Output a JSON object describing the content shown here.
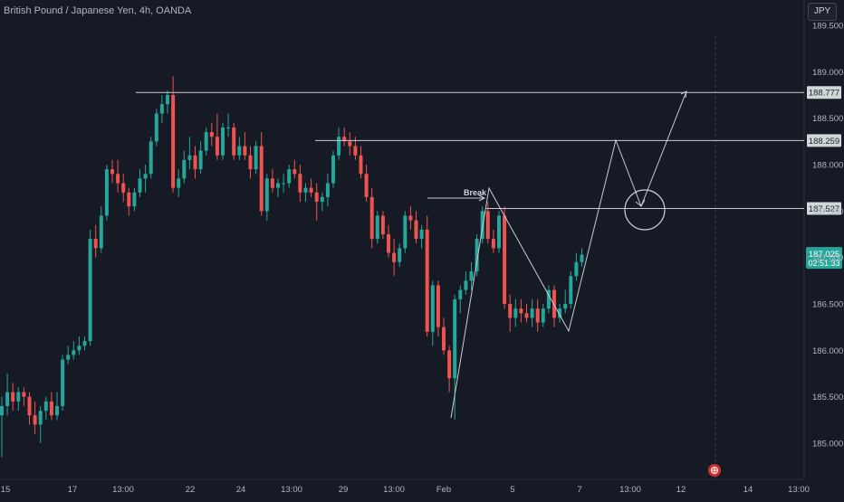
{
  "header": {
    "title": "British Pound / Japanese Yen, 4h, OANDA",
    "currency_badge": "JPY"
  },
  "colors": {
    "background": "#161a25",
    "up": "#26a69a",
    "down": "#ef5350",
    "drawing": "#c9ccd3",
    "level_label_bg": "#cfd8d6",
    "price_badge_bg": "#26a69a"
  },
  "chart_data": {
    "type": "candlestick",
    "title": "British Pound / Japanese Yen, 4h, OANDA",
    "ylim": [
      184.8,
      189.6
    ],
    "y_ticks": [
      185.0,
      185.5,
      186.0,
      186.5,
      187.0,
      187.5,
      188.0,
      188.5,
      189.0,
      189.5
    ],
    "y_tick_labels": [
      "185.000",
      "185.500",
      "186.000",
      "186.500",
      "187.000",
      "187.500",
      "188.000",
      "188.500",
      "189.000",
      "189.500"
    ],
    "x_tick_labels": [
      "15",
      "17",
      "13:00",
      "22",
      "24",
      "13:00",
      "29",
      "13:00",
      "Feb",
      "5",
      "7",
      "13:00",
      "12",
      "14",
      "13:00"
    ],
    "candles": [
      [
        185.3,
        185.5,
        184.85,
        185.4
      ],
      [
        185.4,
        185.75,
        185.3,
        185.55
      ],
      [
        185.55,
        185.65,
        185.35,
        185.45
      ],
      [
        185.45,
        185.6,
        185.35,
        185.55
      ],
      [
        185.55,
        185.6,
        185.4,
        185.5
      ],
      [
        185.5,
        185.55,
        185.2,
        185.3
      ],
      [
        185.3,
        185.45,
        185.1,
        185.2
      ],
      [
        185.2,
        185.4,
        185.0,
        185.35
      ],
      [
        185.35,
        185.5,
        185.25,
        185.45
      ],
      [
        185.45,
        185.55,
        185.25,
        185.3
      ],
      [
        185.3,
        185.55,
        185.25,
        185.4
      ],
      [
        185.4,
        185.95,
        185.35,
        185.9
      ],
      [
        185.9,
        186.05,
        185.85,
        185.95
      ],
      [
        185.95,
        186.1,
        185.9,
        186.0
      ],
      [
        186.0,
        186.15,
        185.95,
        186.05
      ],
      [
        186.05,
        186.15,
        186.0,
        186.1
      ],
      [
        186.1,
        187.3,
        186.05,
        187.2
      ],
      [
        187.2,
        187.35,
        187.0,
        187.1
      ],
      [
        187.1,
        187.55,
        187.05,
        187.45
      ],
      [
        187.45,
        188.0,
        187.4,
        187.95
      ],
      [
        187.95,
        188.05,
        187.8,
        187.9
      ],
      [
        187.9,
        188.05,
        187.7,
        187.8
      ],
      [
        187.8,
        187.9,
        187.6,
        187.7
      ],
      [
        187.7,
        187.75,
        187.45,
        187.55
      ],
      [
        187.55,
        187.75,
        187.5,
        187.7
      ],
      [
        187.7,
        187.95,
        187.65,
        187.85
      ],
      [
        187.85,
        188.0,
        187.7,
        187.9
      ],
      [
        187.9,
        188.3,
        187.85,
        188.25
      ],
      [
        188.25,
        188.6,
        188.2,
        188.55
      ],
      [
        188.55,
        188.75,
        188.45,
        188.65
      ],
      [
        188.65,
        188.8,
        188.55,
        188.75
      ],
      [
        188.75,
        188.95,
        187.7,
        187.75
      ],
      [
        187.75,
        187.95,
        187.65,
        187.85
      ],
      [
        187.85,
        188.15,
        187.8,
        188.05
      ],
      [
        188.05,
        188.3,
        187.95,
        188.1
      ],
      [
        188.1,
        188.2,
        187.85,
        187.95
      ],
      [
        187.95,
        188.25,
        187.9,
        188.15
      ],
      [
        188.15,
        188.4,
        188.1,
        188.35
      ],
      [
        188.35,
        188.45,
        188.2,
        188.3
      ],
      [
        188.3,
        188.55,
        188.05,
        188.1
      ],
      [
        188.1,
        188.45,
        188.05,
        188.4
      ],
      [
        188.4,
        188.55,
        188.3,
        188.4
      ],
      [
        188.4,
        188.45,
        188.05,
        188.1
      ],
      [
        188.1,
        188.3,
        188.05,
        188.2
      ],
      [
        188.2,
        188.35,
        188.05,
        188.1
      ],
      [
        188.1,
        188.2,
        187.85,
        187.95
      ],
      [
        187.95,
        188.25,
        187.9,
        188.2
      ],
      [
        188.2,
        188.35,
        187.45,
        187.5
      ],
      [
        187.5,
        187.9,
        187.4,
        187.85
      ],
      [
        187.85,
        187.95,
        187.7,
        187.75
      ],
      [
        187.75,
        187.85,
        187.65,
        187.8
      ],
      [
        187.8,
        187.9,
        187.7,
        187.8
      ],
      [
        187.8,
        188.0,
        187.75,
        187.95
      ],
      [
        187.95,
        188.05,
        187.85,
        187.9
      ],
      [
        187.9,
        188.0,
        187.6,
        187.7
      ],
      [
        187.7,
        187.8,
        187.6,
        187.75
      ],
      [
        187.75,
        187.85,
        187.65,
        187.7
      ],
      [
        187.7,
        187.8,
        187.4,
        187.6
      ],
      [
        187.6,
        187.7,
        187.5,
        187.65
      ],
      [
        187.65,
        187.9,
        187.55,
        187.8
      ],
      [
        187.8,
        188.15,
        187.75,
        188.1
      ],
      [
        188.1,
        188.4,
        188.05,
        188.3
      ],
      [
        188.3,
        188.4,
        188.2,
        188.25
      ],
      [
        188.25,
        188.35,
        188.1,
        188.2
      ],
      [
        188.2,
        188.3,
        188.05,
        188.1
      ],
      [
        188.1,
        188.2,
        187.85,
        187.9
      ],
      [
        187.9,
        188.0,
        187.6,
        187.65
      ],
      [
        187.65,
        187.75,
        187.1,
        187.2
      ],
      [
        187.2,
        187.5,
        187.15,
        187.45
      ],
      [
        187.45,
        187.5,
        187.2,
        187.25
      ],
      [
        187.25,
        187.35,
        187.0,
        187.05
      ],
      [
        187.05,
        187.2,
        186.8,
        186.95
      ],
      [
        186.95,
        187.15,
        186.9,
        187.1
      ],
      [
        187.1,
        187.5,
        187.05,
        187.45
      ],
      [
        187.45,
        187.55,
        187.3,
        187.4
      ],
      [
        187.4,
        187.5,
        187.15,
        187.2
      ],
      [
        187.2,
        187.35,
        187.1,
        187.3
      ],
      [
        187.3,
        187.45,
        186.15,
        186.2
      ],
      [
        186.2,
        186.75,
        186.05,
        186.7
      ],
      [
        186.7,
        186.75,
        186.15,
        186.25
      ],
      [
        186.25,
        186.35,
        185.95,
        186.0
      ],
      [
        186.0,
        186.05,
        185.55,
        185.7
      ],
      [
        185.7,
        186.6,
        185.25,
        186.55
      ],
      [
        186.55,
        186.7,
        186.4,
        186.65
      ],
      [
        186.65,
        186.85,
        186.6,
        186.75
      ],
      [
        186.75,
        186.95,
        186.65,
        186.85
      ],
      [
        186.85,
        187.25,
        186.8,
        187.2
      ],
      [
        187.2,
        187.55,
        187.15,
        187.5
      ],
      [
        187.5,
        187.6,
        187.15,
        187.2
      ],
      [
        187.2,
        187.3,
        187.05,
        187.1
      ],
      [
        187.1,
        187.5,
        187.05,
        187.45
      ],
      [
        187.45,
        187.55,
        186.45,
        186.5
      ],
      [
        186.5,
        186.6,
        186.2,
        186.35
      ],
      [
        186.35,
        186.55,
        186.25,
        186.45
      ],
      [
        186.45,
        186.55,
        186.3,
        186.4
      ],
      [
        186.4,
        186.5,
        186.3,
        186.35
      ],
      [
        186.35,
        186.55,
        186.25,
        186.45
      ],
      [
        186.45,
        186.55,
        186.2,
        186.3
      ],
      [
        186.3,
        186.5,
        186.25,
        186.45
      ],
      [
        186.45,
        186.7,
        186.4,
        186.65
      ],
      [
        186.65,
        186.7,
        186.25,
        186.35
      ],
      [
        186.35,
        186.5,
        186.3,
        186.45
      ],
      [
        186.45,
        186.65,
        186.4,
        186.5
      ],
      [
        186.5,
        186.85,
        186.45,
        186.8
      ],
      [
        186.8,
        187.05,
        186.75,
        186.95
      ],
      [
        186.95,
        187.1,
        186.9,
        187.03
      ]
    ],
    "horizontal_levels": [
      {
        "price": 188.777,
        "label": "188.777"
      },
      {
        "price": 188.259,
        "label": "188.259"
      },
      {
        "price": 187.527,
        "label": "187.527"
      }
    ],
    "current_price": {
      "price": 187.025,
      "label": "187.025",
      "countdown": "02:51:33"
    },
    "annotation": {
      "text": "Break"
    },
    "grid": false
  }
}
